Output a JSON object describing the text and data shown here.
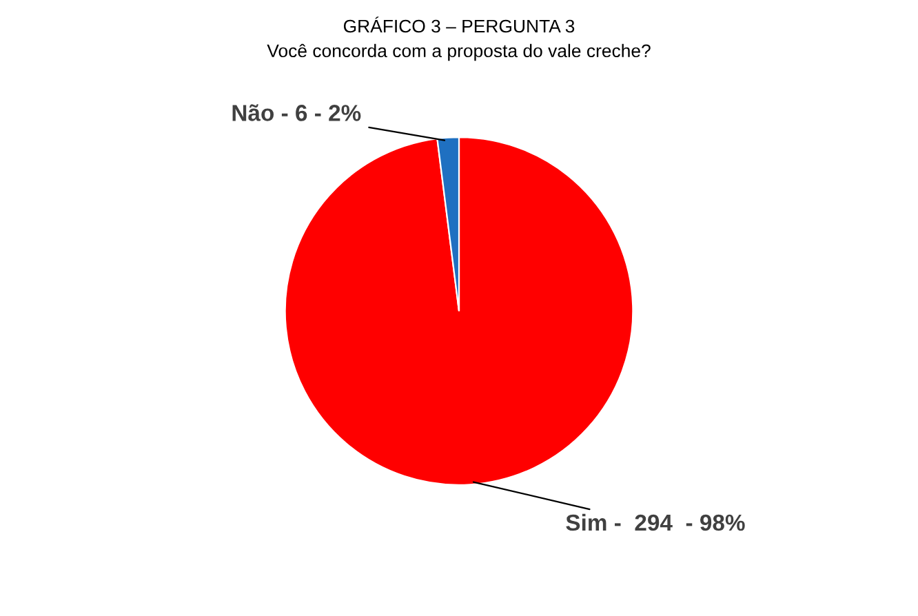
{
  "chart_data": {
    "type": "pie",
    "title": "GRÁFICO 3 – PERGUNTA 3",
    "subtitle": "Você concorda com a proposta do vale creche?",
    "categories": [
      "Sim -  294  - 98%",
      "Não - 6 - 2%"
    ],
    "values": [
      98,
      2
    ],
    "colors": [
      "#ff0000",
      "#1f70c1"
    ],
    "legend": false
  }
}
